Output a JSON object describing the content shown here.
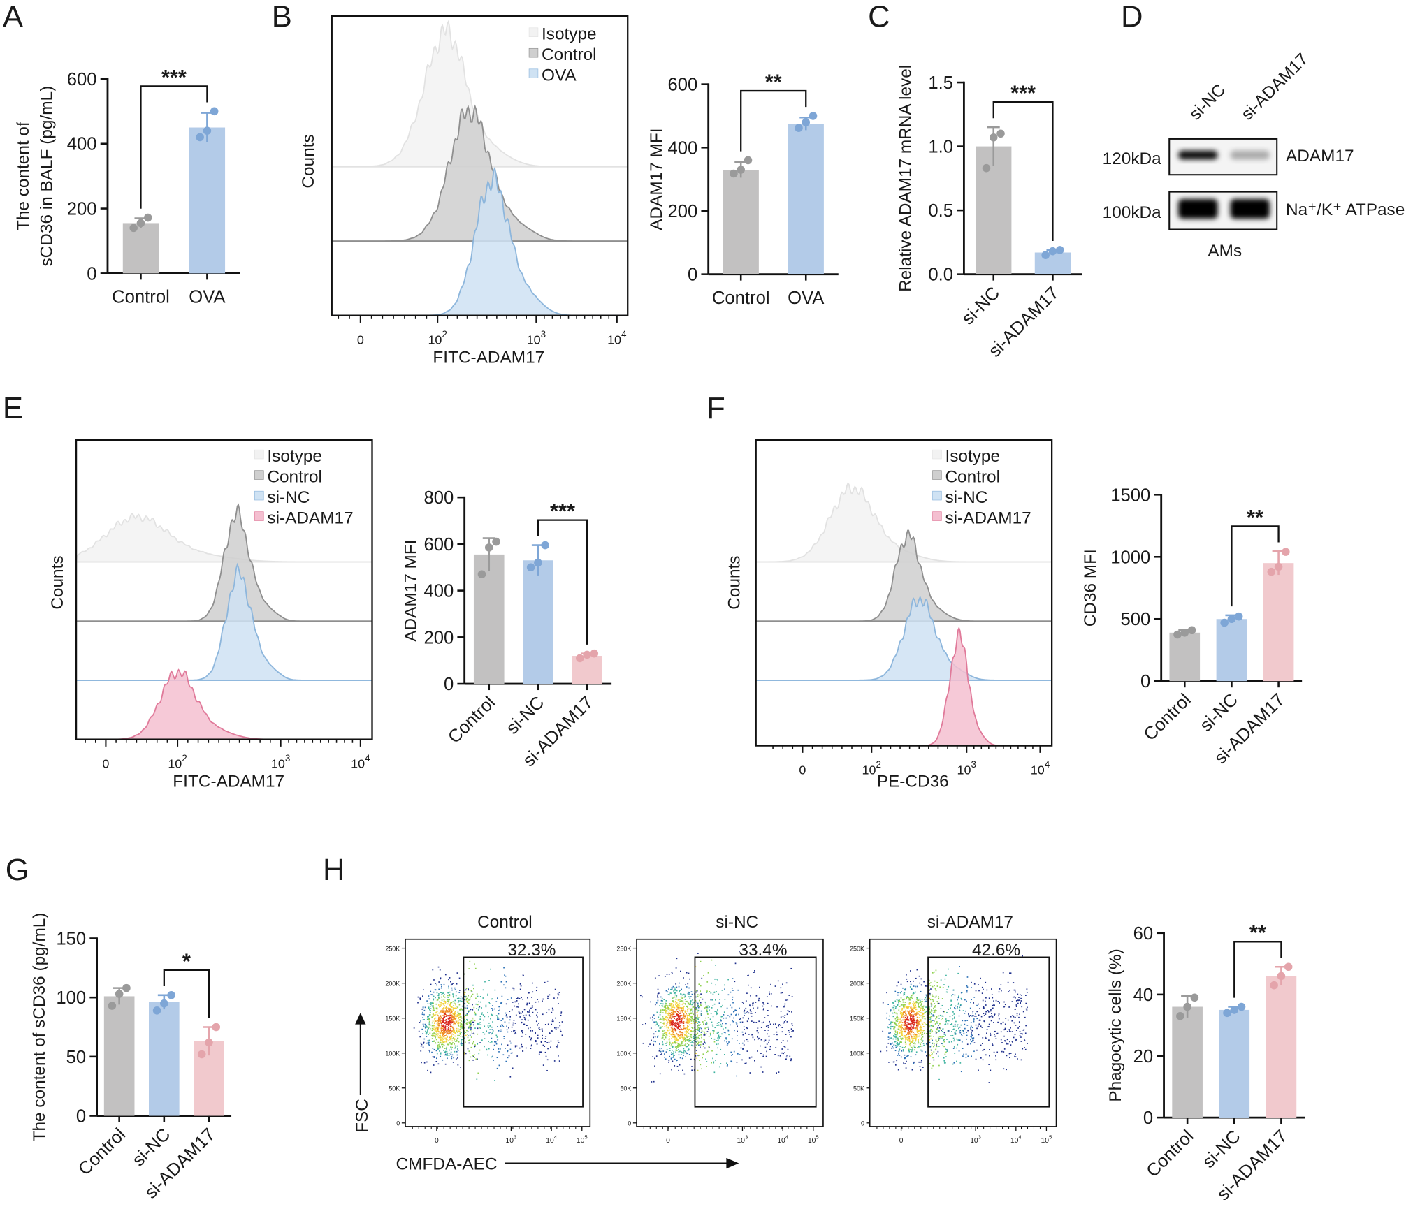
{
  "panel_letters": [
    "A",
    "B",
    "C",
    "D",
    "E",
    "F",
    "G",
    "H"
  ],
  "colors": {
    "gray": "#c2c1c1",
    "gray_dot": "#9a9a9a",
    "blue": "#b3cbe8",
    "blue_dot": "#7ea6d6",
    "pink": "#f1c9cd",
    "pink_dot": "#e4a4ab",
    "iso_fill": "#f2f2f2",
    "iso_line": "#e2e2e2",
    "ctrl_fill": "#cfcfcf",
    "ctrl_line": "#8f8f8f",
    "blue_fill": "#cfe2f3",
    "blue_line": "#8db6dc",
    "pink_fill": "#f4bfd0",
    "pink_line": "#e07a9a"
  },
  "chart_data": [
    {
      "id": "A",
      "type": "bar",
      "title": "",
      "ylabel_lines": [
        "The content of",
        "sCD36 in BALF (pg/mL)"
      ],
      "xlabel": "",
      "categories": [
        "Control",
        "OVA"
      ],
      "means": [
        155,
        450
      ],
      "sd": [
        15,
        45
      ],
      "points": [
        [
          140,
          155,
          172
        ],
        [
          420,
          440,
          500
        ]
      ],
      "colors": [
        "gray",
        "blue"
      ],
      "ylim": [
        0,
        600
      ],
      "yticks": [
        "0",
        "200",
        "400",
        "600"
      ],
      "ytick_values": [
        0,
        200,
        400,
        600
      ],
      "significance": {
        "pair": [
          0,
          1
        ],
        "label": "***"
      },
      "rotate_labels": false
    },
    {
      "id": "B",
      "type": "bar",
      "ylabel_lines": [
        "ADAM17 MFI"
      ],
      "categories": [
        "Control",
        "OVA"
      ],
      "means": [
        330,
        475
      ],
      "sd": [
        25,
        20
      ],
      "points": [
        [
          318,
          330,
          360
        ],
        [
          462,
          480,
          500
        ]
      ],
      "colors": [
        "gray",
        "blue"
      ],
      "ylim": [
        0,
        600
      ],
      "yticks": [
        "0",
        "200",
        "400",
        "600"
      ],
      "ytick_values": [
        0,
        200,
        400,
        600
      ],
      "significance": {
        "pair": [
          0,
          1
        ],
        "label": "**"
      },
      "rotate_labels": false
    },
    {
      "id": "C",
      "type": "bar",
      "ylabel_lines": [
        "Relative ADAM17 mRNA level"
      ],
      "categories": [
        "si-NC",
        "si-ADAM17"
      ],
      "means": [
        1.0,
        0.17
      ],
      "sd": [
        0.15,
        0.02
      ],
      "points": [
        [
          0.83,
          1.07,
          1.1
        ],
        [
          0.15,
          0.18,
          0.19
        ]
      ],
      "colors": [
        "gray",
        "blue"
      ],
      "ylim": [
        0,
        1.5
      ],
      "yticks": [
        "0.0",
        "0.5",
        "1.0",
        "1.5"
      ],
      "ytick_values": [
        0,
        0.5,
        1.0,
        1.5
      ],
      "significance": {
        "pair": [
          0,
          1
        ],
        "label": "***"
      },
      "rotate_labels": true
    },
    {
      "id": "E",
      "type": "bar",
      "ylabel_lines": [
        "ADAM17 MFI"
      ],
      "categories": [
        "Control",
        "si-NC",
        "si-ADAM17"
      ],
      "means": [
        555,
        530,
        120
      ],
      "sd": [
        70,
        65,
        10
      ],
      "points": [
        [
          470,
          585,
          610
        ],
        [
          500,
          520,
          595
        ],
        [
          110,
          125,
          130
        ]
      ],
      "colors": [
        "gray",
        "blue",
        "pink"
      ],
      "ylim": [
        0,
        800
      ],
      "yticks": [
        "0",
        "200",
        "400",
        "600",
        "800"
      ],
      "ytick_values": [
        0,
        200,
        400,
        600,
        800
      ],
      "significance": {
        "pair": [
          1,
          2
        ],
        "label": "***"
      },
      "rotate_labels": true
    },
    {
      "id": "F",
      "type": "bar",
      "ylabel_lines": [
        "CD36 MFI"
      ],
      "categories": [
        "Control",
        "si-NC",
        "si-ADAM17"
      ],
      "means": [
        390,
        500,
        950
      ],
      "sd": [
        20,
        30,
        95
      ],
      "points": [
        [
          375,
          390,
          410
        ],
        [
          470,
          500,
          520
        ],
        [
          880,
          920,
          1040
        ]
      ],
      "colors": [
        "gray",
        "blue",
        "pink"
      ],
      "ylim": [
        0,
        1500
      ],
      "yticks": [
        "0",
        "500",
        "1000",
        "1500"
      ],
      "ytick_values": [
        0,
        500,
        1000,
        1500
      ],
      "significance": {
        "pair": [
          1,
          2
        ],
        "label": "**"
      },
      "rotate_labels": true
    },
    {
      "id": "G",
      "type": "bar",
      "ylabel_lines": [
        "The content of sCD36 (pg/mL)"
      ],
      "categories": [
        "Control",
        "si-NC",
        "si-ADAM17"
      ],
      "means": [
        101,
        96,
        63
      ],
      "sd": [
        7,
        6,
        12
      ],
      "points": [
        [
          93,
          103,
          108
        ],
        [
          89,
          95,
          102
        ],
        [
          52,
          62,
          75
        ]
      ],
      "colors": [
        "gray",
        "blue",
        "pink"
      ],
      "ylim": [
        0,
        150
      ],
      "yticks": [
        "0",
        "50",
        "100",
        "150"
      ],
      "ytick_values": [
        0,
        50,
        100,
        150
      ],
      "significance": {
        "pair": [
          1,
          2
        ],
        "label": "*"
      },
      "rotate_labels": true
    },
    {
      "id": "H",
      "type": "bar",
      "ylabel_lines": [
        "Phagocytic cells (%)"
      ],
      "categories": [
        "Control",
        "si-NC",
        "si-ADAM17"
      ],
      "means": [
        36,
        35,
        46
      ],
      "sd": [
        3.5,
        1,
        3
      ],
      "points": [
        [
          33,
          36,
          39
        ],
        [
          34,
          35,
          36
        ],
        [
          43,
          46,
          49
        ]
      ],
      "colors": [
        "gray",
        "blue",
        "pink"
      ],
      "ylim": [
        0,
        60
      ],
      "yticks": [
        "0",
        "20",
        "40",
        "60"
      ],
      "ytick_values": [
        0,
        20,
        40,
        60
      ],
      "significance": {
        "pair": [
          1,
          2
        ],
        "label": "**"
      },
      "rotate_labels": true
    }
  ],
  "histograms": [
    {
      "id": "B",
      "type": "histogram",
      "xlabel": "FITC-ADAM17",
      "ylabel": "Counts",
      "xticks": [
        {
          "v": 1.3,
          "t": "0",
          "s": ""
        },
        {
          "v": 2,
          "t": "10",
          "s": "2"
        },
        {
          "v": 3,
          "t": "10",
          "s": "3"
        },
        {
          "v": 4,
          "t": "10",
          "s": "4"
        }
      ],
      "series": [
        {
          "name": "Isotype",
          "center_log10": 2.08,
          "width": 0.2,
          "fill": "iso_fill",
          "line": "iso_line"
        },
        {
          "name": "Control",
          "center_log10": 2.32,
          "width": 0.2,
          "fill": "ctrl_fill",
          "line": "ctrl_line"
        },
        {
          "name": "OVA",
          "center_log10": 2.55,
          "width": 0.17,
          "fill": "blue_fill",
          "line": "blue_line"
        }
      ]
    },
    {
      "id": "E",
      "type": "histogram",
      "xlabel": "FITC-ADAM17",
      "ylabel": "Counts",
      "xticks": [
        {
          "v": 1.3,
          "t": "0",
          "s": ""
        },
        {
          "v": 2,
          "t": "10",
          "s": "2"
        },
        {
          "v": 3,
          "t": "10",
          "s": "3"
        },
        {
          "v": 4,
          "t": "10",
          "s": "4"
        }
      ],
      "series": [
        {
          "name": "Isotype",
          "center_log10": 1.6,
          "width": 0.3,
          "fill": "iso_fill",
          "line": "iso_line"
        },
        {
          "name": "Control",
          "center_log10": 2.57,
          "width": 0.12,
          "fill": "ctrl_fill",
          "line": "ctrl_line"
        },
        {
          "name": "si-NC",
          "center_log10": 2.59,
          "width": 0.12,
          "fill": "blue_fill",
          "line": "blue_line"
        },
        {
          "name": "si-ADAM17",
          "center_log10": 2.0,
          "width": 0.17,
          "fill": "pink_fill",
          "line": "pink_line"
        }
      ]
    },
    {
      "id": "F",
      "type": "histogram",
      "xlabel": "PE-CD36",
      "ylabel": "Counts",
      "xticks": [
        {
          "v": 1.3,
          "t": "0",
          "s": ""
        },
        {
          "v": 2,
          "t": "10",
          "s": "2"
        },
        {
          "v": 3,
          "t": "10",
          "s": "3"
        },
        {
          "v": 4,
          "t": "10",
          "s": "4"
        }
      ],
      "series": [
        {
          "name": "Isotype",
          "center_log10": 1.8,
          "width": 0.22,
          "fill": "iso_fill",
          "line": "iso_line"
        },
        {
          "name": "Control",
          "center_log10": 2.38,
          "width": 0.13,
          "fill": "ctrl_fill",
          "line": "ctrl_line"
        },
        {
          "name": "si-NC",
          "center_log10": 2.5,
          "width": 0.16,
          "fill": "blue_fill",
          "line": "blue_line"
        },
        {
          "name": "si-ADAM17",
          "center_log10": 2.92,
          "width": 0.1,
          "fill": "pink_fill",
          "line": "pink_line"
        }
      ]
    }
  ],
  "western_blot": {
    "lanes": [
      "si-NC",
      "si-ADAM17"
    ],
    "bands": [
      {
        "marker": "120kDa",
        "protein": "ADAM17",
        "intensity": [
          0.95,
          0.3
        ]
      },
      {
        "marker": "100kDa",
        "protein": "Na⁺/K⁺ ATPase",
        "intensity": [
          1.0,
          1.0
        ]
      }
    ],
    "cell_label": "AMs"
  },
  "flow_scatter": {
    "y_axis_label": "FSC",
    "x_axis_label": "CMFDA-AEC",
    "yticks": [
      "0",
      "50K",
      "100K",
      "150K",
      "200K",
      "250K"
    ],
    "xticks": [
      {
        "t": "0",
        "s": ""
      },
      {
        "t": "10",
        "s": "3"
      },
      {
        "t": "10",
        "s": "4"
      },
      {
        "t": "10",
        "s": "5"
      }
    ],
    "panels": [
      {
        "title": "Control",
        "gate_percent": "32.3%",
        "gate_fraction": 0.323
      },
      {
        "title": "si-NC",
        "gate_percent": "33.4%",
        "gate_fraction": 0.334
      },
      {
        "title": "si-ADAM17",
        "gate_percent": "42.6%",
        "gate_fraction": 0.426
      }
    ]
  }
}
